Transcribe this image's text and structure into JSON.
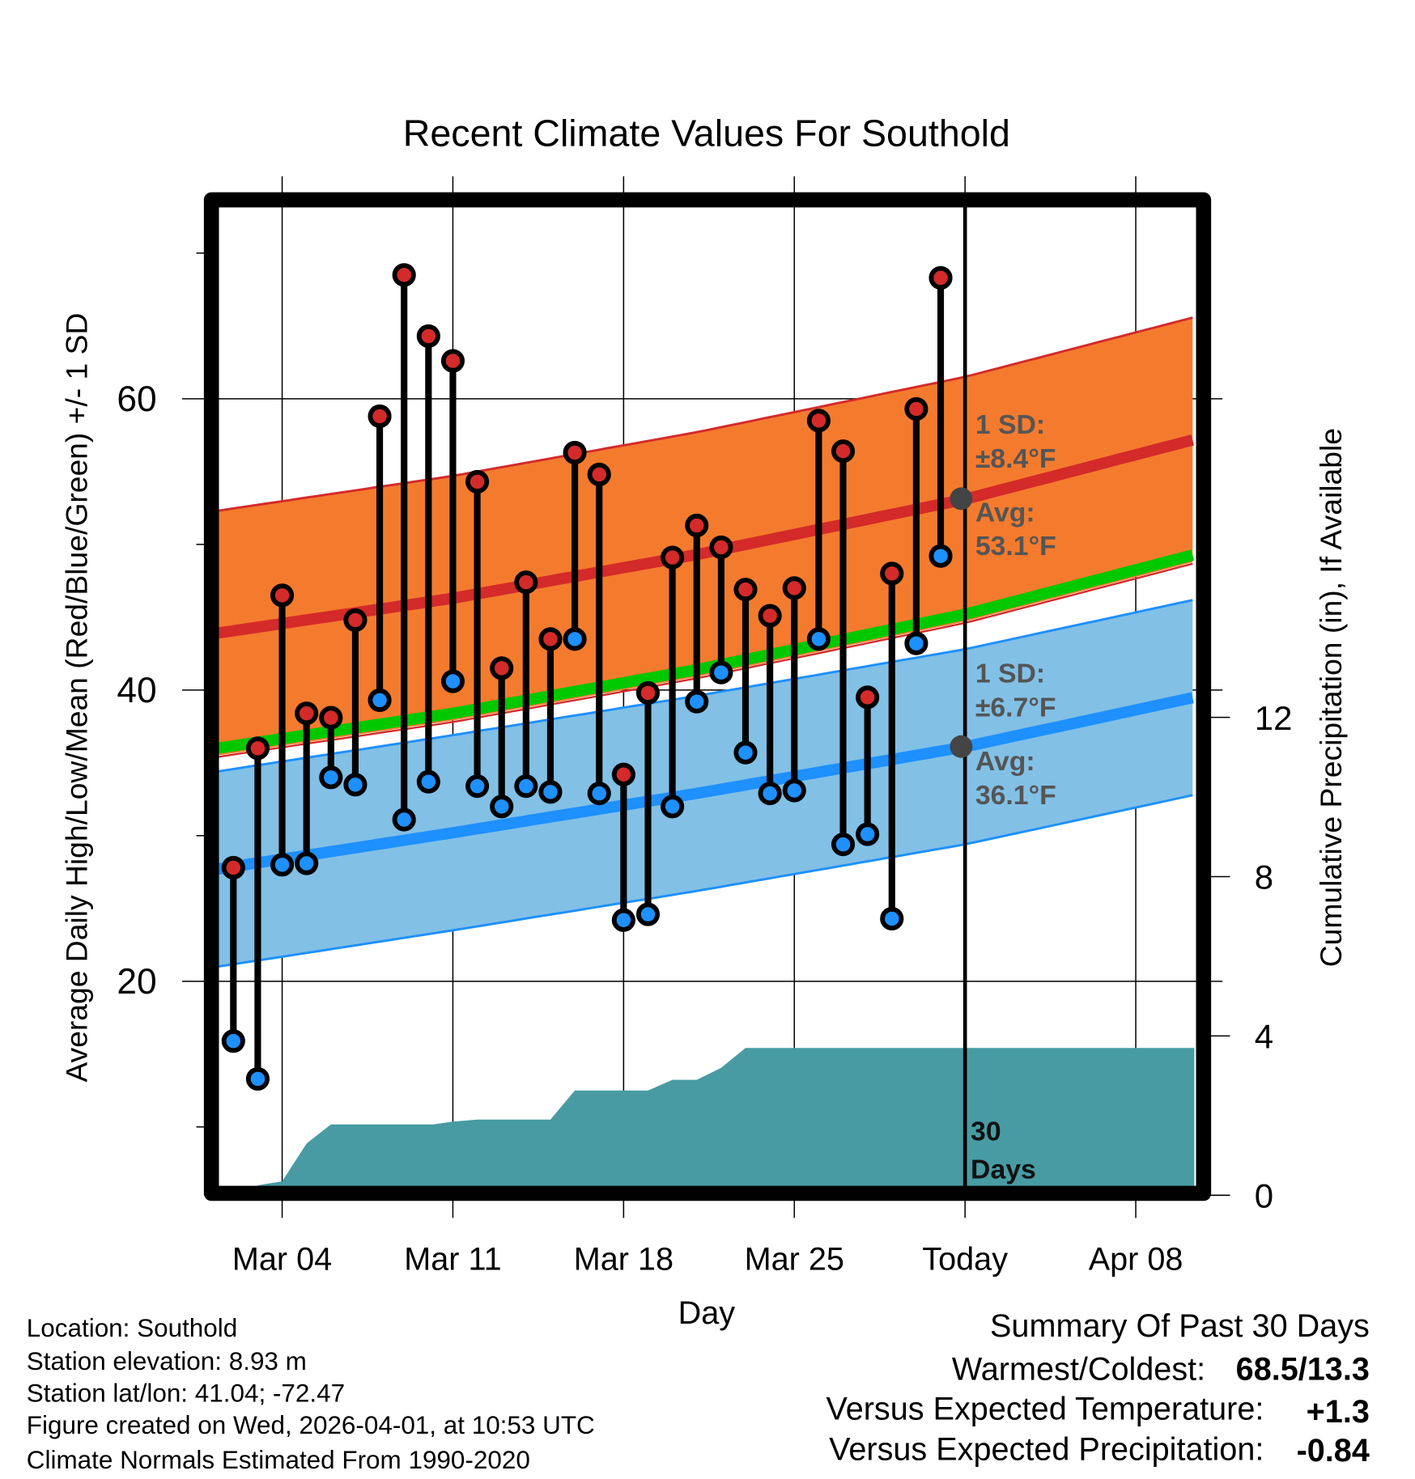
{
  "chart_data": {
    "type": "line",
    "title": "Recent Climate Values For Southold",
    "xlabel": "Day",
    "ylabel": "Average Daily High/Low/Mean (Red/Blue/Green) +/- 1 SD",
    "y2label": "Cumulative Precipitation (in), If Available",
    "ylim": [
      7,
      75
    ],
    "y2lim": [
      0,
      16
    ],
    "yticks": [
      "20",
      "40",
      "60"
    ],
    "y2ticks": [
      "0",
      "4",
      "8",
      "12"
    ],
    "xticks": [
      {
        "day": 4,
        "label": "Mar 04"
      },
      {
        "day": 11,
        "label": "Mar 11"
      },
      {
        "day": 18,
        "label": "Mar 18"
      },
      {
        "day": 25,
        "label": "Mar 25"
      },
      {
        "day": 32,
        "label": "Today"
      },
      {
        "day": 39,
        "label": "Apr 08"
      }
    ],
    "x_unit": "day of March (32 = Apr 01)",
    "days": [
      2,
      3,
      4,
      5,
      6,
      7,
      8,
      9,
      10,
      11,
      12,
      13,
      14,
      15,
      16,
      17,
      18,
      19,
      20,
      21,
      22,
      23,
      24,
      25,
      26,
      27,
      28,
      29,
      30,
      31
    ],
    "highs": [
      27.8,
      36.0,
      46.5,
      38.4,
      38.1,
      44.8,
      58.8,
      68.5,
      64.3,
      62.6,
      54.3,
      41.5,
      47.4,
      43.5,
      56.3,
      54.8,
      34.2,
      39.8,
      49.1,
      51.3,
      49.8,
      46.9,
      45.1,
      47.0,
      58.5,
      56.4,
      39.5,
      48.0,
      59.3,
      68.3
    ],
    "lows": [
      15.9,
      13.3,
      28.0,
      28.1,
      34.0,
      33.5,
      39.3,
      31.1,
      33.7,
      40.6,
      33.4,
      32.0,
      33.4,
      33.0,
      43.5,
      32.9,
      24.2,
      24.6,
      32.0,
      39.2,
      41.2,
      35.7,
      32.9,
      33.1,
      43.5,
      29.4,
      30.1,
      24.3,
      43.2,
      49.2
    ],
    "normals": {
      "days": [
        1.33,
        11,
        21,
        32,
        41.4
      ],
      "high_avg": [
        43.9,
        46.3,
        49.3,
        53.1,
        57.2
      ],
      "high_sd": 8.4,
      "low_avg": [
        27.7,
        30.2,
        32.9,
        36.1,
        39.5
      ],
      "low_sd": 6.7
    },
    "precip_cumulative": [
      [
        2.6,
        0
      ],
      [
        3,
        0.25
      ],
      [
        3.5,
        0.3
      ],
      [
        4,
        0.35
      ],
      [
        5,
        1.3
      ],
      [
        6,
        1.78
      ],
      [
        10.2,
        1.78
      ],
      [
        11,
        1.85
      ],
      [
        12,
        1.9
      ],
      [
        15,
        1.9
      ],
      [
        16,
        2.63
      ],
      [
        19,
        2.63
      ],
      [
        20,
        2.9
      ],
      [
        21,
        2.9
      ],
      [
        22,
        3.2
      ],
      [
        23,
        3.7
      ],
      [
        41.4,
        3.7
      ]
    ],
    "annotations": {
      "high_sd_label": "1 SD:",
      "high_sd_value": "±8.4°F",
      "high_avg_label": "Avg:",
      "high_avg_value": "53.1°F",
      "low_sd_label": "1 SD:",
      "low_sd_value": "±6.7°F",
      "low_avg_label": "Avg:",
      "low_avg_value": "36.1°F",
      "period_number": "30",
      "period_unit": "Days"
    },
    "colors": {
      "high": "#d42a2a",
      "low": "#1e90ff",
      "high_band": "#f47b2e",
      "low_band": "#82c0e6",
      "mean": "#00c800",
      "precip": "#489ba3"
    }
  },
  "footer": {
    "location": "Location: Southold",
    "elevation": "Station elevation: 8.93 m",
    "latlon": "Station lat/lon: 41.04; -72.47",
    "created": "Figure created on Wed, 2026-04-01, at 10:53 UTC",
    "normals": "Climate Normals Estimated From 1990-2020"
  },
  "summary": {
    "title": "Summary Of Past 30 Days",
    "warm_cold_label": "Warmest/Coldest:",
    "warm_cold_value": "68.5/13.3",
    "temp_label": "Versus Expected Temperature:",
    "temp_value": "+1.3",
    "precip_label": "Versus Expected Precipitation:",
    "precip_value": "-0.84",
    "temp_color": "#d42a2a",
    "precip_color": "#a0522d"
  }
}
